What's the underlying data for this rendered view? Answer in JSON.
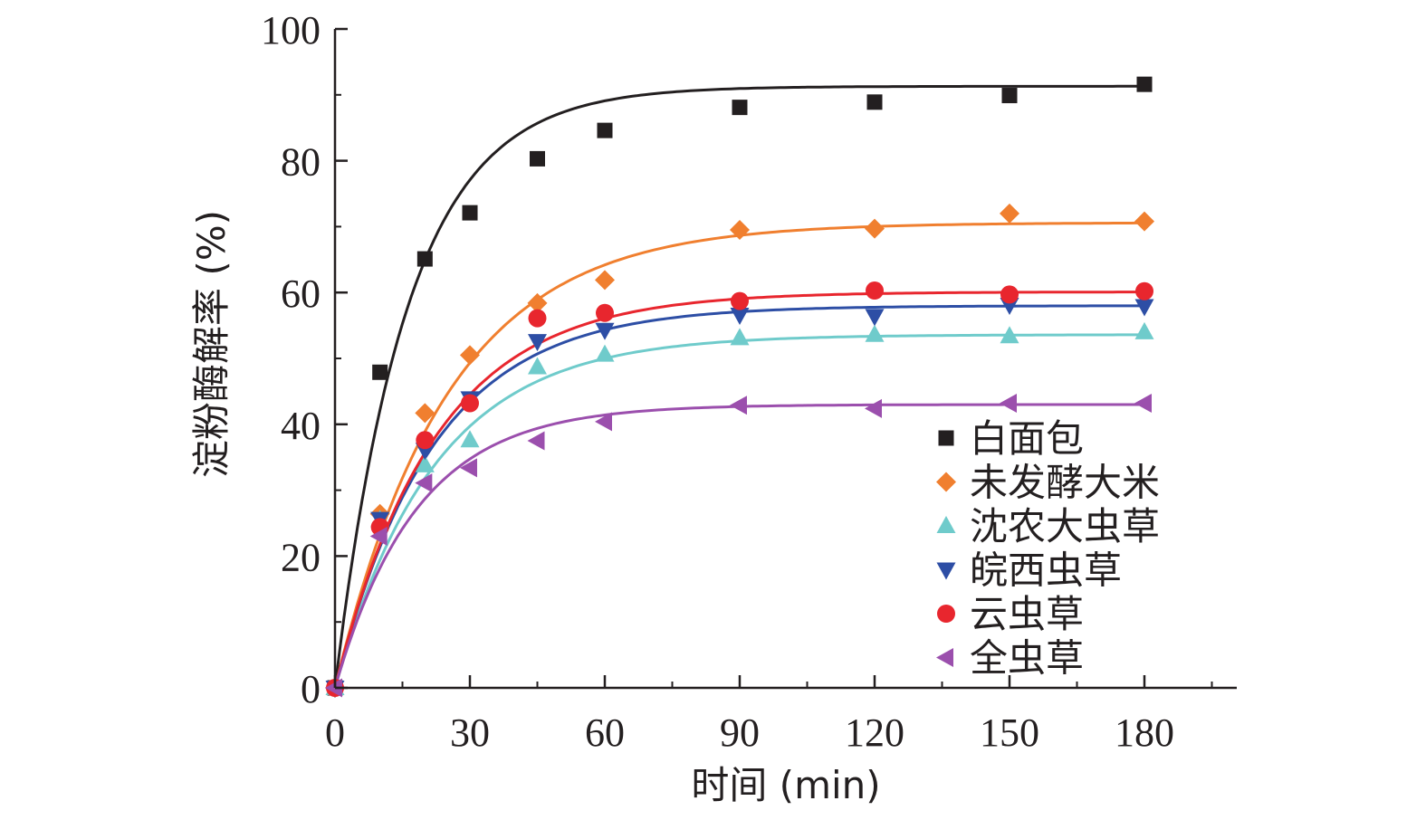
{
  "chart_data": {
    "type": "scatter",
    "title": "",
    "xlabel": "时间 (min)",
    "ylabel": "淀粉酶解率 (%)",
    "xlim": [
      0,
      200
    ],
    "ylim": [
      0,
      100
    ],
    "xticks": [
      0,
      30,
      60,
      90,
      120,
      150,
      180
    ],
    "yticks": [
      0,
      20,
      40,
      60,
      80,
      100
    ],
    "grid": false,
    "legend_position": "bottom-right",
    "x": [
      0,
      10,
      20,
      30,
      45,
      60,
      90,
      120,
      150,
      180
    ],
    "series": [
      {
        "name": "白面包",
        "marker": "square",
        "color": "#231f20",
        "values": [
          0,
          47.9,
          65.1,
          72.1,
          80.3,
          84.6,
          88.1,
          88.9,
          89.9,
          91.6
        ],
        "fit": {
          "plateau": 91.3,
          "k": 0.062
        }
      },
      {
        "name": "未发酵大米",
        "marker": "diamond",
        "color": "#f07f2f",
        "values": [
          0,
          26.4,
          41.7,
          50.5,
          58.4,
          61.9,
          69.5,
          69.7,
          72.0,
          70.8
        ],
        "fit": {
          "plateau": 70.6,
          "k": 0.04
        }
      },
      {
        "name": "沈农大虫草",
        "marker": "triangle-up",
        "color": "#6fcbcb",
        "values": [
          0,
          25.5,
          33.8,
          37.6,
          48.7,
          50.6,
          53.1,
          53.6,
          53.4,
          54.0
        ],
        "fit": {
          "plateau": 53.6,
          "k": 0.045
        }
      },
      {
        "name": "皖西虫草",
        "marker": "triangle-down",
        "color": "#2d4ea5",
        "values": [
          0,
          25.6,
          36.1,
          43.9,
          52.6,
          54.3,
          56.6,
          56.4,
          58.1,
          57.9
        ],
        "fit": {
          "plateau": 58.0,
          "k": 0.046
        }
      },
      {
        "name": "云虫草",
        "marker": "circle",
        "color": "#e8262e",
        "values": [
          0,
          24.4,
          37.6,
          43.2,
          56.1,
          56.9,
          58.7,
          60.3,
          59.7,
          60.2
        ],
        "fit": {
          "plateau": 60.1,
          "k": 0.045
        }
      },
      {
        "name": "全虫草",
        "marker": "triangle-left",
        "color": "#9b4fad",
        "values": [
          0,
          23.0,
          31.1,
          33.4,
          37.5,
          40.4,
          42.9,
          42.4,
          43.2,
          43.2
        ],
        "fit": {
          "plateau": 43.0,
          "k": 0.055
        }
      }
    ]
  }
}
